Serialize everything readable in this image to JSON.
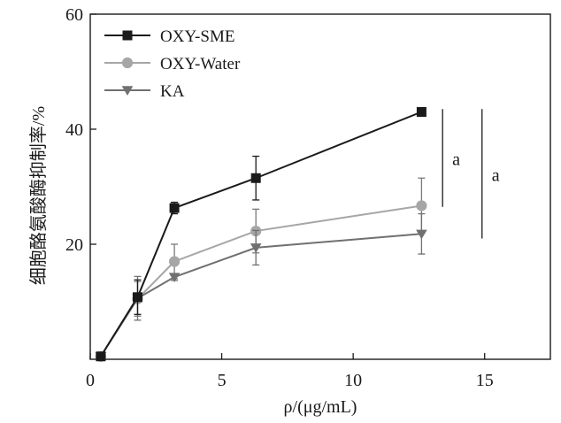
{
  "chart_data": {
    "type": "line",
    "title": "",
    "xlabel": "ρ/(μg/mL)",
    "ylabel": "细胞酪氨酸酶抑制率/%",
    "xlim": [
      0,
      17.5
    ],
    "ylim": [
      0,
      60
    ],
    "xticks": [
      0,
      5,
      10,
      15
    ],
    "yticks": [
      20,
      40,
      60
    ],
    "x_tick_labels": [
      "0",
      "5",
      "10",
      "15"
    ],
    "y_tick_labels": [
      "20",
      "40",
      "60"
    ],
    "legend_position": "top-left",
    "grid": false,
    "x": [
      0.4,
      1.8,
      3.2,
      6.3,
      12.6
    ],
    "series": [
      {
        "name": "OXY-SME",
        "marker": "square",
        "color": "#1a1a1a",
        "values": [
          0.5,
          10.8,
          26.3,
          31.5,
          43.0
        ],
        "errors": [
          0.3,
          3.0,
          1.0,
          3.8,
          0.6
        ]
      },
      {
        "name": "OXY-Water",
        "marker": "circle",
        "color": "#a6a6a6",
        "values": [
          0.5,
          10.5,
          17.0,
          22.3,
          26.7
        ],
        "errors": [
          0.3,
          3.0,
          3.0,
          3.8,
          4.8
        ]
      },
      {
        "name": "KA",
        "marker": "triangle-down",
        "color": "#707070",
        "values": [
          0.5,
          10.6,
          14.3,
          19.4,
          21.8
        ],
        "errors": [
          0.3,
          3.8,
          0.6,
          3.0,
          3.5
        ]
      }
    ],
    "annotations": [
      {
        "label": "a",
        "x": 13.4,
        "y_range": [
          26.5,
          43.5
        ]
      },
      {
        "label": "a",
        "x": 14.9,
        "y_range": [
          21.0,
          43.5
        ]
      }
    ]
  }
}
